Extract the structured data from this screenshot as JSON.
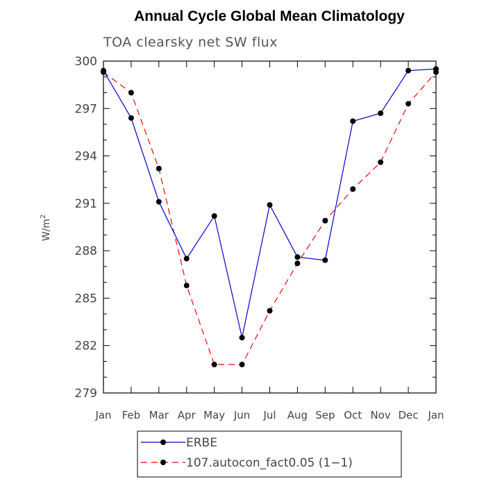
{
  "chart_data": {
    "type": "line",
    "title": "Annual Cycle Global Mean Climatology",
    "subtitle": "TOA clearsky net SW flux",
    "ylabel_base": "W/m",
    "ylabel_sup": "2",
    "xlabel": "",
    "categories": [
      "Jan",
      "Feb",
      "Mar",
      "Apr",
      "May",
      "Jun",
      "Jul",
      "Aug",
      "Sep",
      "Oct",
      "Nov",
      "Dec",
      "Jan"
    ],
    "ylim": [
      279,
      300
    ],
    "yticks": [
      279,
      282,
      285,
      288,
      291,
      294,
      297,
      300
    ],
    "grid": false,
    "legend_position": "bottom",
    "series": [
      {
        "name": "ERBE",
        "values": [
          299.4,
          296.4,
          291.1,
          287.5,
          290.2,
          282.5,
          290.9,
          287.6,
          287.4,
          296.2,
          296.7,
          299.4,
          299.5
        ],
        "color": "#0000cc",
        "dash": "solid",
        "marker": "filled-circle"
      },
      {
        "name": "107.autocon_fact0.05 (1−1)",
        "values": [
          299.3,
          298.0,
          293.2,
          285.8,
          280.8,
          280.8,
          284.2,
          287.2,
          289.9,
          291.9,
          293.6,
          297.3,
          299.3
        ],
        "color": "#ee0000",
        "dash": "dashed",
        "marker": "filled-circle"
      }
    ]
  }
}
